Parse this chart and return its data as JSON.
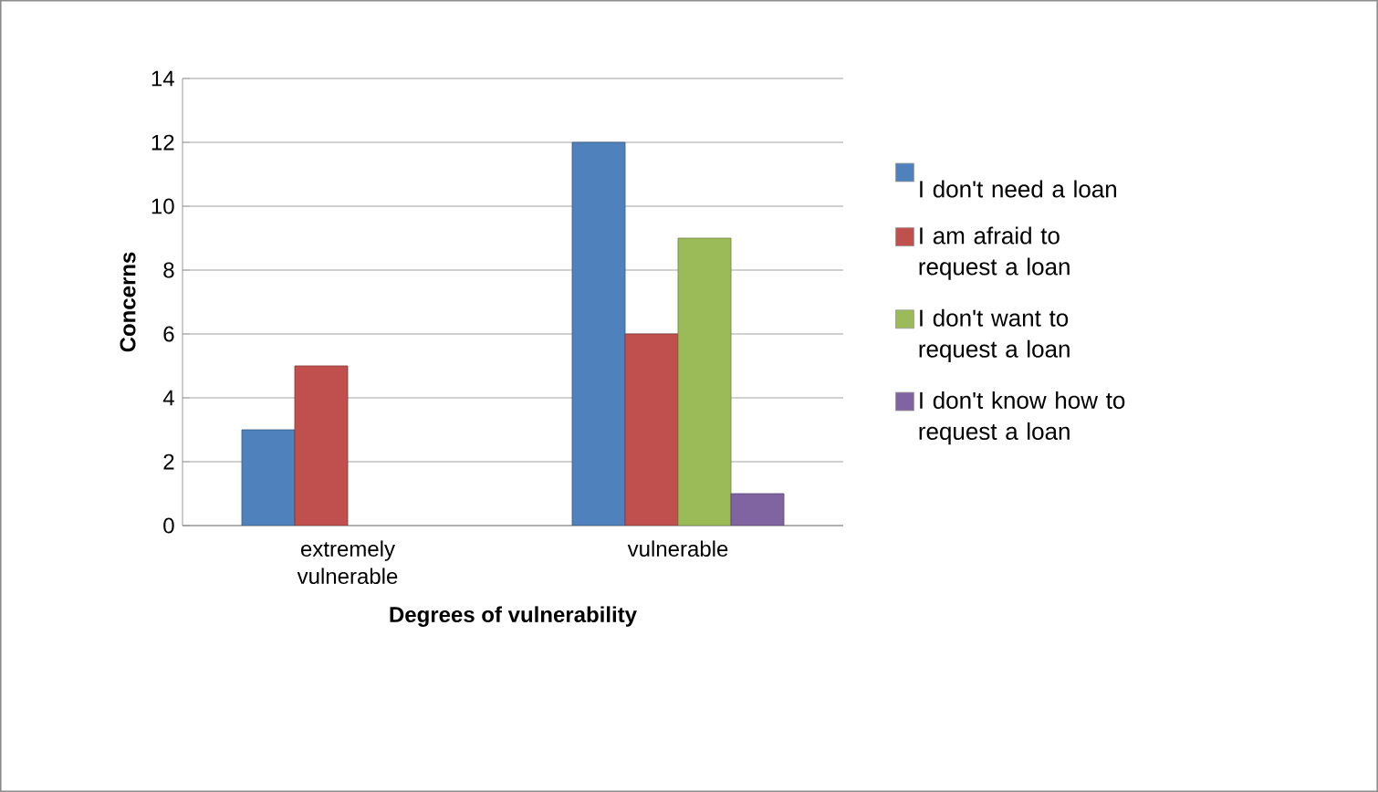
{
  "chart_data": {
    "type": "bar",
    "xlabel": "Degrees of vulnerability",
    "ylabel": "Concerns",
    "categories": [
      "extremely vulnerable",
      "vulnerable"
    ],
    "series": [
      {
        "name": "I don't need a loan",
        "color": "#4f81bd",
        "values": [
          3,
          12
        ]
      },
      {
        "name": "I am afraid to request a loan",
        "color": "#c0504d",
        "values": [
          5,
          6
        ]
      },
      {
        "name": "I don't want to request a loan",
        "color": "#9bbb59",
        "values": [
          null,
          9
        ]
      },
      {
        "name": "I don't know how to request a loan",
        "color": "#8064a2",
        "values": [
          null,
          1
        ]
      }
    ],
    "ylim": [
      0,
      14
    ],
    "yticks": [
      0,
      2,
      4,
      6,
      8,
      10,
      12,
      14
    ],
    "grid": "y",
    "legend": "right"
  }
}
